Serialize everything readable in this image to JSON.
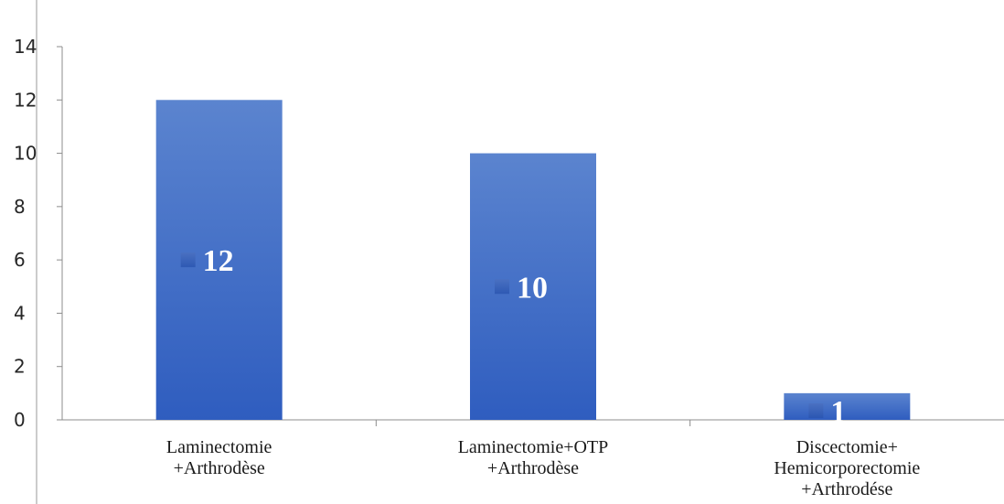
{
  "chart_data": {
    "type": "bar",
    "categories": [
      [
        "Laminectomie",
        "+Arthrodèse"
      ],
      [
        "Laminectomie+OTP",
        "+Arthrodèse"
      ],
      [
        "Discectomie+",
        "Hemicorporectomie",
        "+Arthrodése"
      ]
    ],
    "values": [
      12,
      10,
      1
    ],
    "data_labels": [
      "12",
      "10",
      "1"
    ],
    "y_ticks": [
      "0",
      "2",
      "4",
      "6",
      "8",
      "10",
      "12",
      "14"
    ],
    "ylim": [
      0,
      14
    ],
    "grid": false,
    "legend": "none",
    "colors": {
      "bar_top": "#5b84cf",
      "bar_bottom": "#2f5dbf",
      "axis": "#8c8c8c",
      "marker": "#2a55b0"
    }
  }
}
